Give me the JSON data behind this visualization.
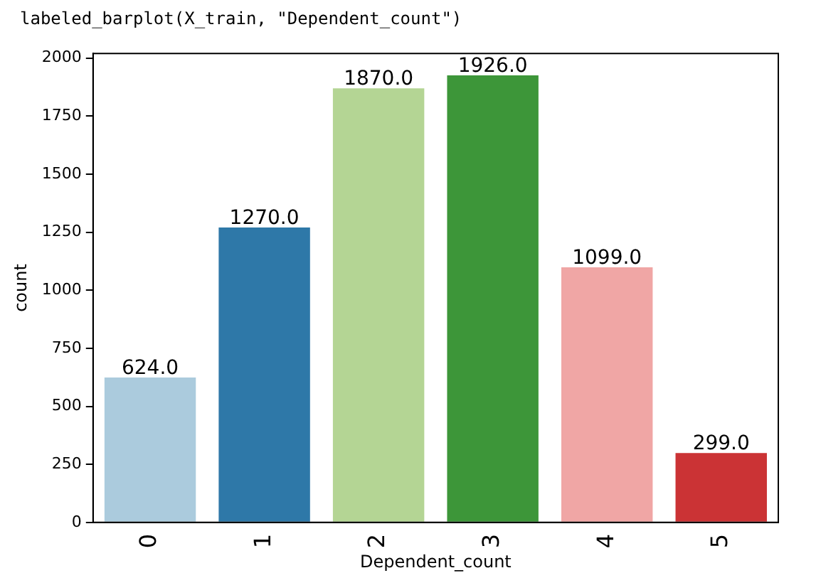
{
  "chart_data": {
    "type": "bar",
    "annotations": [
      "labeled_barplot(X_train, \"Dependent_count\")"
    ],
    "xlabel": "Dependent_count",
    "ylabel": "count",
    "categories": [
      "0",
      "1",
      "2",
      "3",
      "4",
      "5"
    ],
    "values": [
      624,
      1270,
      1870,
      1926,
      1099,
      299
    ],
    "value_labels": [
      "624.0",
      "1270.0",
      "1870.0",
      "1926.0",
      "1099.0",
      "299.0"
    ],
    "colors": [
      "#abcbdd",
      "#2e78a8",
      "#b4d594",
      "#3d9639",
      "#f0a6a5",
      "#cb3335"
    ],
    "ylim": [
      0,
      2020
    ],
    "yticks": [
      0,
      250,
      500,
      750,
      1000,
      1250,
      1500,
      1750,
      2000
    ],
    "grid": false,
    "legend": false
  }
}
